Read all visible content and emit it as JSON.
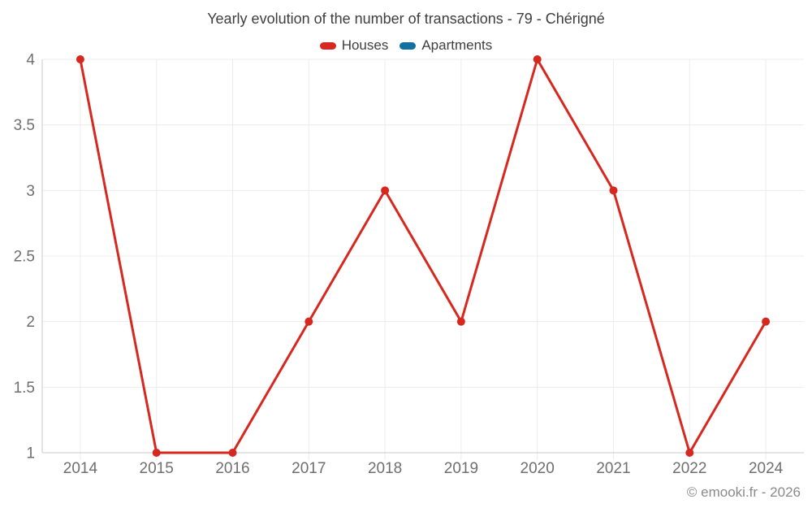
{
  "chart_data": {
    "type": "line",
    "title": "Yearly evolution of the number of transactions - 79 - Chérigné",
    "categories": [
      "2014",
      "2015",
      "2016",
      "2017",
      "2018",
      "2019",
      "2020",
      "2021",
      "2022",
      "2024"
    ],
    "series": [
      {
        "name": "Houses",
        "color": "#d7281f",
        "values": [
          4,
          1,
          1,
          2,
          3,
          2,
          4,
          3,
          1,
          2
        ]
      },
      {
        "name": "Apartments",
        "color": "#1371a0",
        "values": []
      }
    ],
    "xlabel": "",
    "ylabel": "",
    "ylim": [
      1,
      4
    ],
    "yticks": [
      1,
      1.5,
      2,
      2.5,
      3,
      3.5,
      4
    ],
    "grid": true,
    "legend_position": "top",
    "marker": "circle"
  },
  "footer": {
    "text": "© emooki.fr - 2026"
  }
}
